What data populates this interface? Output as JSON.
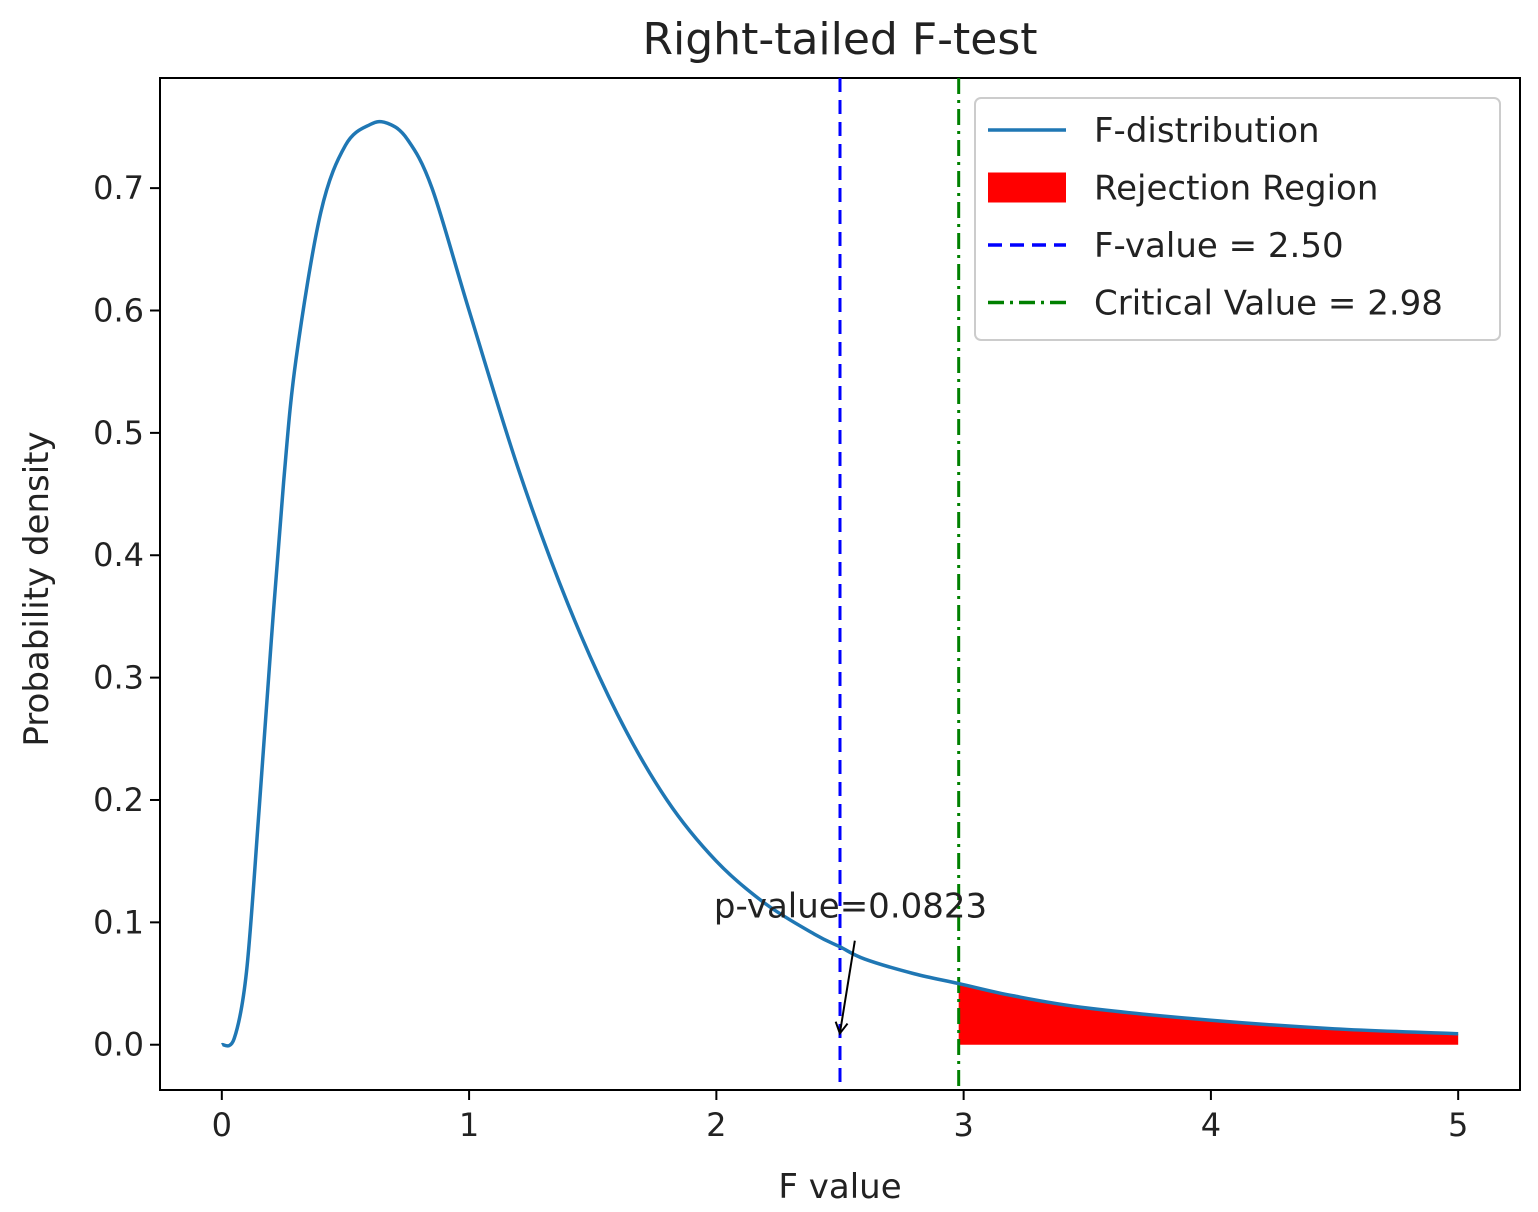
{
  "chart_data": {
    "type": "line",
    "title": "Right-tailed F-test",
    "xlabel": "F value",
    "ylabel": "Probability density",
    "xlim": [
      -0.25,
      5.25
    ],
    "ylim": [
      -0.037,
      0.79
    ],
    "xticks": [
      0,
      1,
      2,
      3,
      4,
      5
    ],
    "xtick_labels": [
      "0",
      "1",
      "2",
      "3",
      "4",
      "5"
    ],
    "yticks": [
      0.0,
      0.1,
      0.2,
      0.3,
      0.4,
      0.5,
      0.6,
      0.7
    ],
    "ytick_labels": [
      "0.0",
      "0.1",
      "0.2",
      "0.3",
      "0.4",
      "0.5",
      "0.6",
      "0.7"
    ],
    "grid": false,
    "legend_position": "top-right",
    "series": [
      {
        "name": "F-distribution",
        "kind": "line",
        "color": "#1f77b4",
        "x": [
          0.0,
          0.05,
          0.1,
          0.15,
          0.2,
          0.25,
          0.3,
          0.4,
          0.5,
          0.6,
          0.67,
          0.75,
          0.85,
          1.0,
          1.2,
          1.4,
          1.6,
          1.8,
          2.0,
          2.2,
          2.4,
          2.5,
          2.6,
          2.8,
          2.98,
          3.2,
          3.5,
          4.0,
          4.5,
          5.0
        ],
        "y": [
          0.0,
          0.005,
          0.06,
          0.19,
          0.33,
          0.46,
          0.56,
          0.68,
          0.735,
          0.752,
          0.753,
          0.74,
          0.7,
          0.6,
          0.47,
          0.36,
          0.27,
          0.2,
          0.15,
          0.115,
          0.09,
          0.08,
          0.07,
          0.058,
          0.05,
          0.04,
          0.03,
          0.02,
          0.013,
          0.009
        ]
      },
      {
        "name": "Rejection Region",
        "kind": "fill",
        "color": "#ff0000",
        "x_from": 2.98,
        "x_to": 5.0
      },
      {
        "name": "F-value = 2.50",
        "kind": "vline",
        "x": 2.5,
        "color": "#0000ff",
        "dash": "dashed"
      },
      {
        "name": "Critical Value = 2.98",
        "kind": "vline",
        "x": 2.98,
        "color": "#008000",
        "dash": "dashdot"
      }
    ],
    "annotations": [
      {
        "text": "p-value=0.0823",
        "text_x": 1.99,
        "text_y": 0.104,
        "arrow_from_x": 2.56,
        "arrow_from_y": 0.085,
        "arrow_to_x": 2.5,
        "arrow_to_y": 0.01
      }
    ]
  }
}
